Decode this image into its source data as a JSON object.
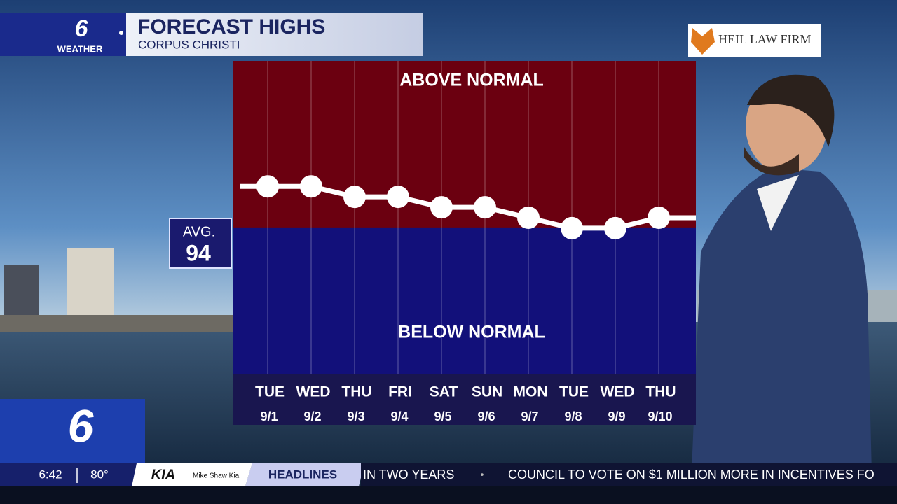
{
  "header": {
    "station": "6",
    "brand": "WEATHER",
    "title": "FORECAST HIGHS",
    "subtitle": "CORPUS CHRISTI"
  },
  "sponsor": "HEIL LAW FIRM",
  "chart_data": {
    "type": "line",
    "above_label": "ABOVE NORMAL",
    "below_label": "BELOW NORMAL",
    "average_label": "AVG.",
    "average": 94,
    "above_color": "#6b0010",
    "below_color": "#12107a",
    "color": "#ffffff",
    "categories": [
      "TUE",
      "WED",
      "THU",
      "FRI",
      "SAT",
      "SUN",
      "MON",
      "TUE",
      "WED",
      "THU"
    ],
    "dates": [
      "9/1",
      "9/2",
      "9/3",
      "9/4",
      "9/5",
      "9/6",
      "9/7",
      "9/8",
      "9/9",
      "9/10"
    ],
    "values": [
      98,
      98,
      97,
      97,
      96,
      96,
      95,
      94,
      94,
      95
    ],
    "ylim": [
      80,
      110
    ]
  },
  "footer": {
    "logo": "6",
    "time": "6:42",
    "temperature": "80°",
    "sponsor_logo": "KIA",
    "sponsor": "Mike Shaw Kia",
    "ticker_label": "HEADLINES",
    "ticker": [
      "IN TWO YEARS",
      "•",
      "COUNCIL TO VOTE ON $1 MILLION MORE IN INCENTIVES FO"
    ]
  }
}
